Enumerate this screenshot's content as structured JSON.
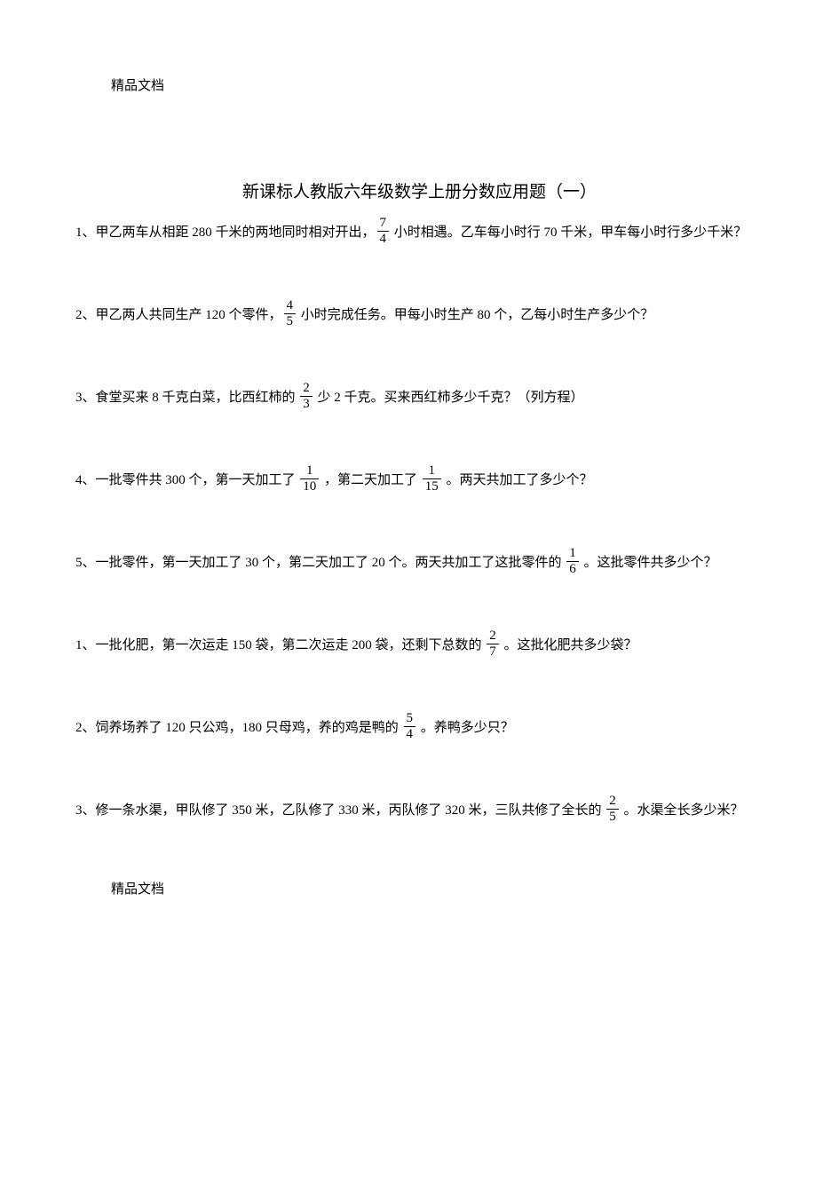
{
  "watermark": "精品文档",
  "title": "新课标人教版六年级数学上册分数应用题（一）",
  "questions": [
    {
      "num": "1",
      "pre": "甲乙两车从相距 280 千米的两地同时相对开出，",
      "frac": {
        "n": "7",
        "d": "4"
      },
      "post": " 小时相遇。乙车每小时行 70 千米，甲车每小时行多少千米？"
    },
    {
      "num": "2",
      "pre": "甲乙两人共同生产 120 个零件，",
      "frac": {
        "n": "4",
        "d": "5"
      },
      "post": " 小时完成任务。甲每小时生产 80 个，乙每小时生产多少个？"
    },
    {
      "num": "3",
      "pre": "食堂买来 8 千克白菜，比西红柿的 ",
      "frac": {
        "n": "2",
        "d": "3"
      },
      "post": " 少 2 千克。买来西红柿多少千克？（列方程）"
    },
    {
      "num": "4",
      "pre": "一批零件共 300 个，第一天加工了 ",
      "frac": {
        "n": "1",
        "d": "10"
      },
      "mid": " ，第二天加工了 ",
      "frac2": {
        "n": "1",
        "d": "15"
      },
      "post": " 。两天共加工了多少个？"
    },
    {
      "num": "5",
      "pre": "一批零件，第一天加工了 30 个，第二天加工了 20 个。两天共加工了这批零件的 ",
      "frac": {
        "n": "1",
        "d": "6"
      },
      "post": " 。这批零件共多少个？"
    },
    {
      "num": "1",
      "pre": "一批化肥，第一次运走 150 袋，第二次运走 200 袋，还剩下总数的 ",
      "frac": {
        "n": "2",
        "d": "7"
      },
      "post": " 。这批化肥共多少袋？"
    },
    {
      "num": "2",
      "pre": "饲养场养了 120 只公鸡，180 只母鸡，养的鸡是鸭的 ",
      "frac": {
        "n": "5",
        "d": "4"
      },
      "post": " 。养鸭多少只？"
    },
    {
      "num": "3",
      "pre": "修一条水渠，甲队修了 350 米，乙队修了 330 米，丙队修了 320 米，三队共修了全长的 ",
      "frac": {
        "n": "2",
        "d": "5"
      },
      "post": " 。水渠全长多少米？"
    }
  ]
}
